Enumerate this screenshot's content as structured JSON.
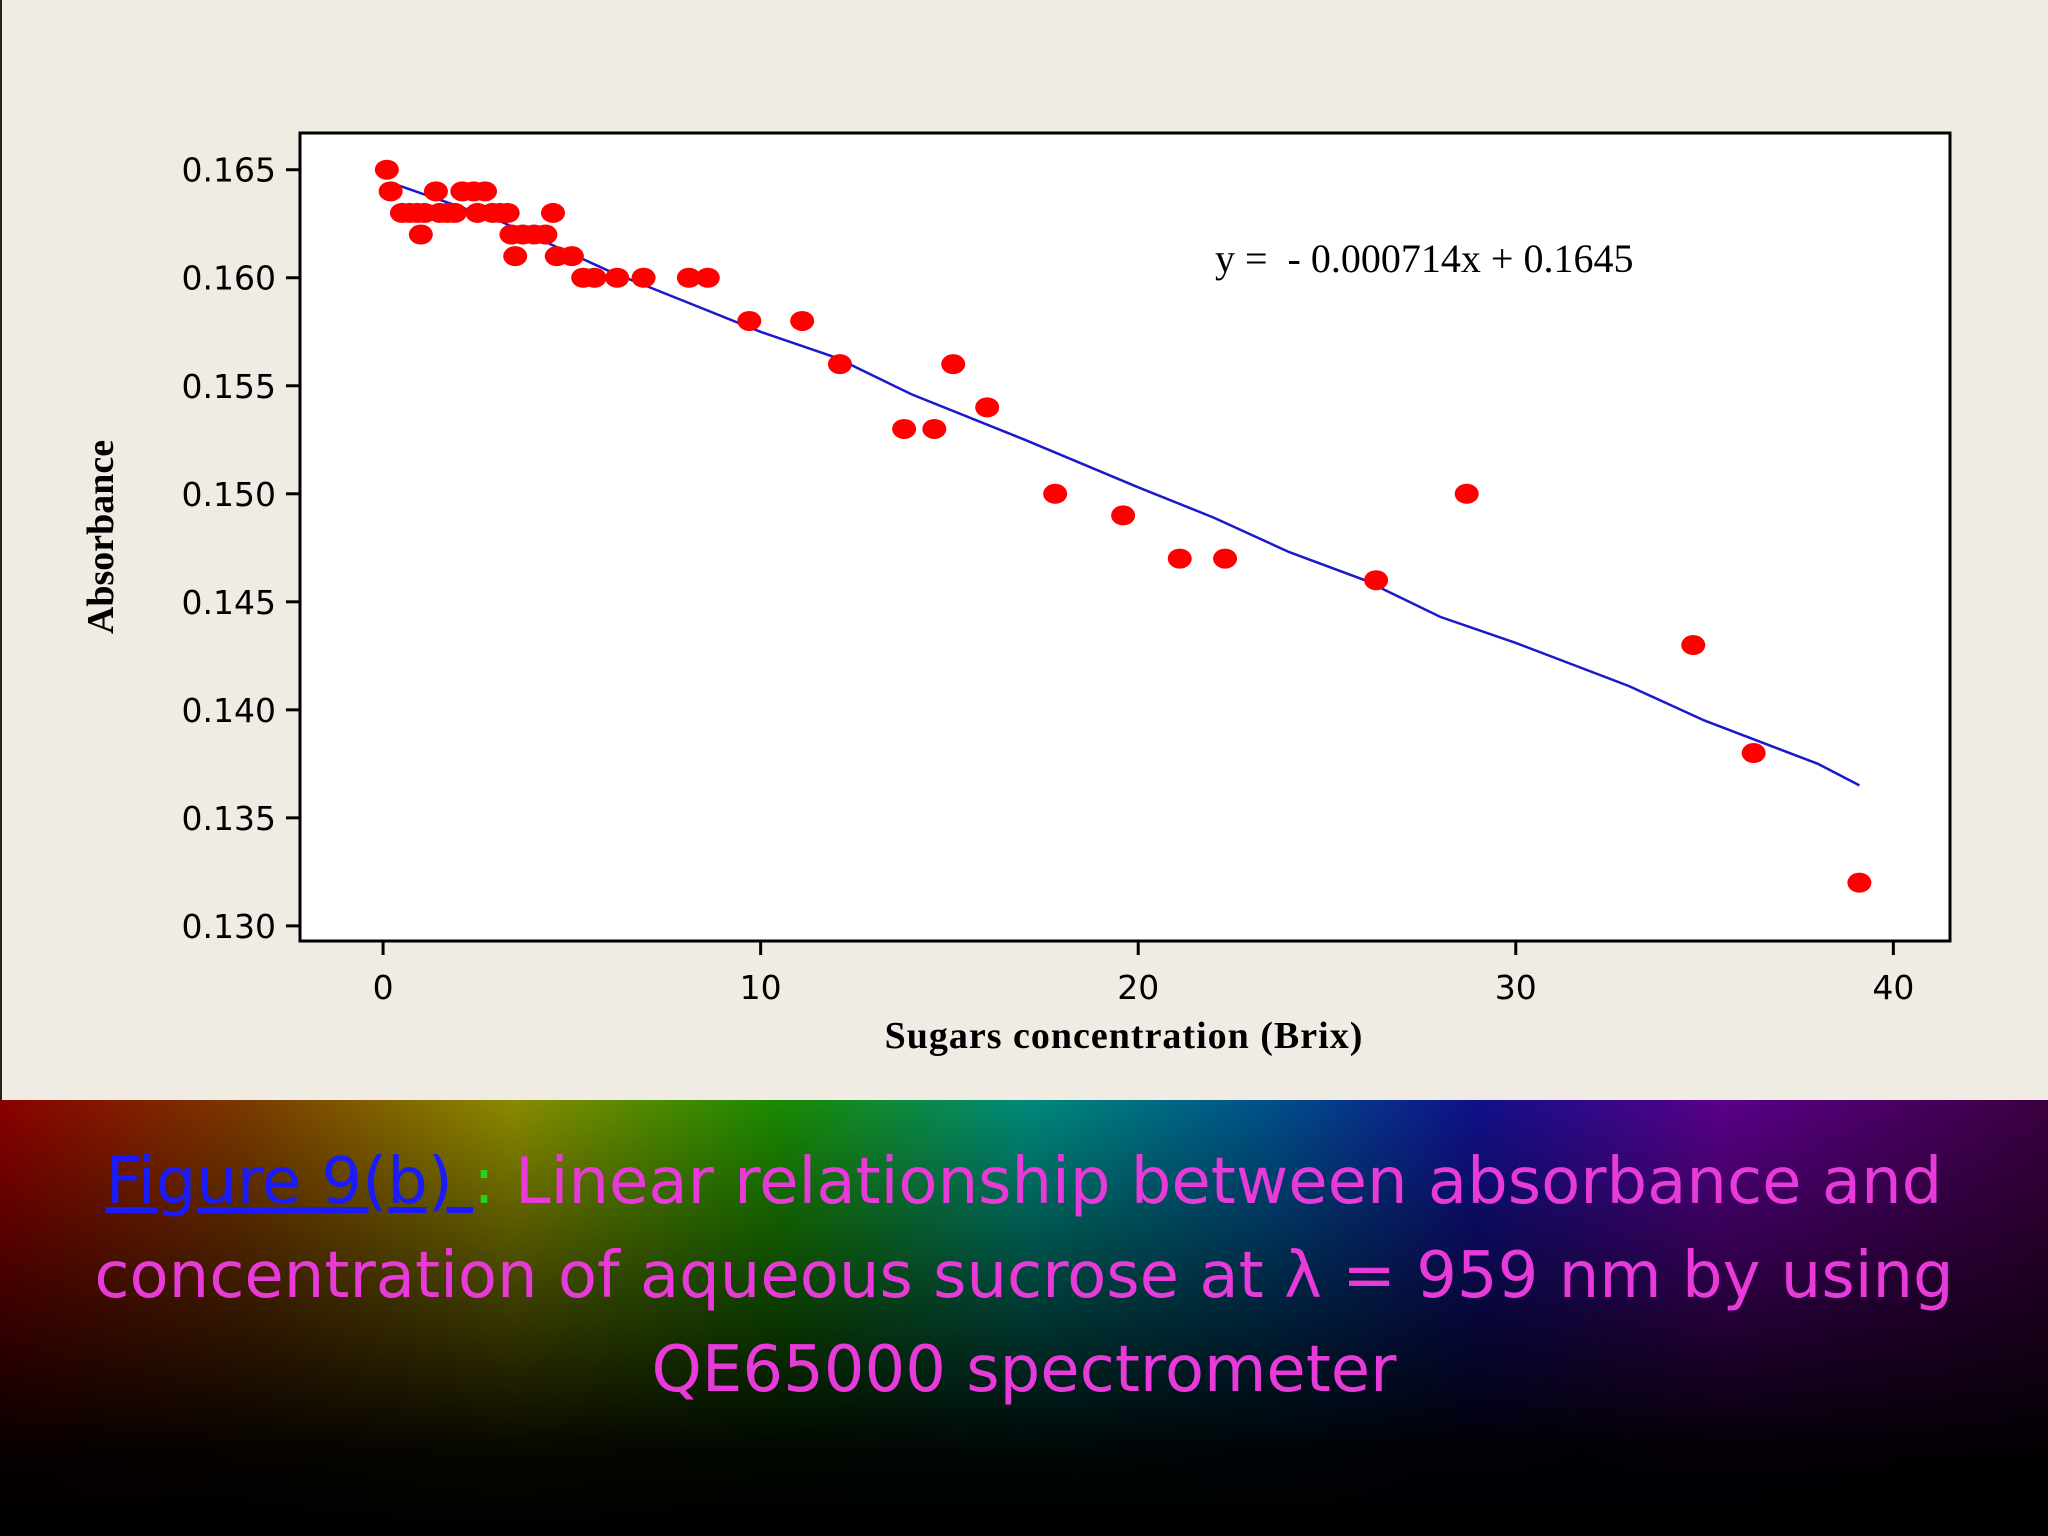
{
  "chart_data": {
    "type": "scatter",
    "xlabel": "Sugars concentration (Brix)",
    "ylabel": "Absorbance",
    "xlim": [
      -2.2,
      41.5
    ],
    "ylim": [
      0.1293,
      0.1667
    ],
    "x_ticks": [
      0,
      10,
      20,
      30,
      40
    ],
    "y_ticks": [
      0.13,
      0.135,
      0.14,
      0.145,
      0.15,
      0.155,
      0.16,
      0.165
    ],
    "x_tick_labels": [
      "0",
      "10",
      "20",
      "30",
      "40"
    ],
    "y_tick_labels": [
      "0.130",
      "0.135",
      "0.140",
      "0.145",
      "0.150",
      "0.155",
      "0.160",
      "0.165"
    ],
    "equation": "y =  - 0.000714x + 0.1645",
    "grid": false,
    "point_color": "#ff0000",
    "line_color": "#1a1acc",
    "points": [
      {
        "x": 0.1,
        "y": 0.165
      },
      {
        "x": 0.2,
        "y": 0.164
      },
      {
        "x": 0.5,
        "y": 0.163
      },
      {
        "x": 0.7,
        "y": 0.163
      },
      {
        "x": 0.9,
        "y": 0.163
      },
      {
        "x": 1.0,
        "y": 0.162
      },
      {
        "x": 1.1,
        "y": 0.163
      },
      {
        "x": 1.4,
        "y": 0.164
      },
      {
        "x": 1.5,
        "y": 0.163
      },
      {
        "x": 1.7,
        "y": 0.163
      },
      {
        "x": 1.9,
        "y": 0.163
      },
      {
        "x": 2.1,
        "y": 0.164
      },
      {
        "x": 2.4,
        "y": 0.164
      },
      {
        "x": 2.5,
        "y": 0.163
      },
      {
        "x": 2.7,
        "y": 0.164
      },
      {
        "x": 2.9,
        "y": 0.163
      },
      {
        "x": 3.1,
        "y": 0.163
      },
      {
        "x": 3.3,
        "y": 0.163
      },
      {
        "x": 3.4,
        "y": 0.162
      },
      {
        "x": 3.5,
        "y": 0.161
      },
      {
        "x": 3.7,
        "y": 0.162
      },
      {
        "x": 4.0,
        "y": 0.162
      },
      {
        "x": 4.3,
        "y": 0.162
      },
      {
        "x": 4.5,
        "y": 0.163
      },
      {
        "x": 4.6,
        "y": 0.161
      },
      {
        "x": 5.0,
        "y": 0.161
      },
      {
        "x": 5.3,
        "y": 0.16
      },
      {
        "x": 5.6,
        "y": 0.16
      },
      {
        "x": 6.2,
        "y": 0.16
      },
      {
        "x": 6.9,
        "y": 0.16
      },
      {
        "x": 8.1,
        "y": 0.16
      },
      {
        "x": 8.6,
        "y": 0.16
      },
      {
        "x": 9.7,
        "y": 0.158
      },
      {
        "x": 11.1,
        "y": 0.158
      },
      {
        "x": 12.1,
        "y": 0.156
      },
      {
        "x": 13.8,
        "y": 0.153
      },
      {
        "x": 14.6,
        "y": 0.153
      },
      {
        "x": 15.1,
        "y": 0.156
      },
      {
        "x": 16.0,
        "y": 0.154
      },
      {
        "x": 17.8,
        "y": 0.15
      },
      {
        "x": 19.6,
        "y": 0.149
      },
      {
        "x": 21.1,
        "y": 0.147
      },
      {
        "x": 22.3,
        "y": 0.147
      },
      {
        "x": 26.3,
        "y": 0.146
      },
      {
        "x": 28.7,
        "y": 0.15
      },
      {
        "x": 34.7,
        "y": 0.143
      },
      {
        "x": 36.3,
        "y": 0.138
      },
      {
        "x": 39.1,
        "y": 0.132
      }
    ],
    "fit_line": [
      {
        "x": 0.2,
        "y": 0.1644
      },
      {
        "x": 3.0,
        "y": 0.1627
      },
      {
        "x": 6.0,
        "y": 0.1603
      },
      {
        "x": 8.0,
        "y": 0.1589
      },
      {
        "x": 10.0,
        "y": 0.1575
      },
      {
        "x": 12.0,
        "y": 0.1563
      },
      {
        "x": 14.0,
        "y": 0.1546
      },
      {
        "x": 17.0,
        "y": 0.1525
      },
      {
        "x": 20.0,
        "y": 0.1503
      },
      {
        "x": 22.0,
        "y": 0.1489
      },
      {
        "x": 24.0,
        "y": 0.1473
      },
      {
        "x": 26.0,
        "y": 0.146
      },
      {
        "x": 28.0,
        "y": 0.1443
      },
      {
        "x": 30.0,
        "y": 0.1431
      },
      {
        "x": 33.0,
        "y": 0.1411
      },
      {
        "x": 35.0,
        "y": 0.1395
      },
      {
        "x": 38.0,
        "y": 0.1375
      },
      {
        "x": 39.1,
        "y": 0.1365
      }
    ]
  },
  "caption": {
    "figure_ref": "Figure 9(b) ",
    "separator": ":",
    "line1": " Linear relationship between absorbance and",
    "line2": "concentration of aqueous sucrose at λ = 959 nm by using",
    "line3": "QE65000 spectrometer"
  },
  "colors": {
    "caption_text": "#e83ad8",
    "figure_ref": "#1a1aff",
    "separator": "#27d21b",
    "slide_background": "#f0ebe3"
  }
}
